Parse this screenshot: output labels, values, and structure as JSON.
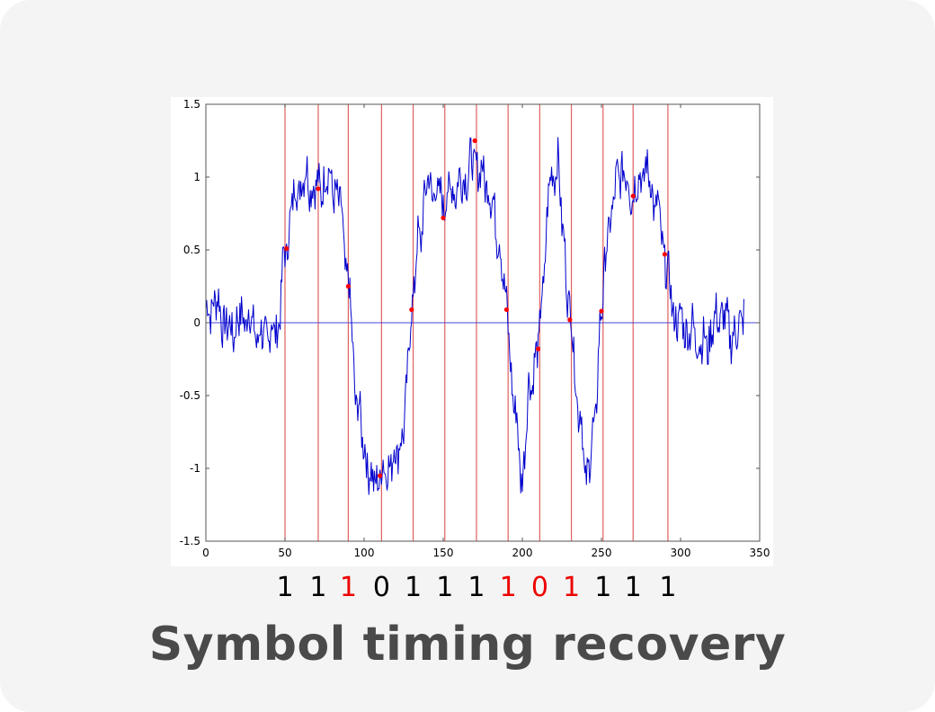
{
  "title": "Symbol timing recovery",
  "chart_data": {
    "type": "line",
    "xlim": [
      0,
      350
    ],
    "ylim": [
      -1.5,
      1.5
    ],
    "x_ticks": [
      "0",
      "50",
      "100",
      "150",
      "200",
      "250",
      "300",
      "350"
    ],
    "y_ticks": [
      "1.5",
      "1",
      "0.5",
      "0",
      "-0.5",
      "-1",
      "-1.5"
    ],
    "grid": false,
    "colors": {
      "signal": "#0000cc",
      "zero_line": "#4444dd",
      "sampling_lines": "#e06060",
      "sample_points": "#ff0000"
    },
    "zero_line_y": 0,
    "sampling_instants_x": [
      50,
      71,
      90,
      111,
      131,
      151,
      171,
      191,
      211,
      231,
      251,
      270,
      292
    ],
    "samples": [
      {
        "x": 51,
        "y": 0.51
      },
      {
        "x": 71,
        "y": 0.92
      },
      {
        "x": 90,
        "y": 0.25
      },
      {
        "x": 110,
        "y": -1.05
      },
      {
        "x": 130,
        "y": 0.09
      },
      {
        "x": 150,
        "y": 0.72
      },
      {
        "x": 170,
        "y": 1.25
      },
      {
        "x": 190,
        "y": 0.09
      },
      {
        "x": 210,
        "y": -0.18
      },
      {
        "x": 230,
        "y": 0.02
      },
      {
        "x": 250,
        "y": 0.08
      },
      {
        "x": 270,
        "y": 0.87
      },
      {
        "x": 290,
        "y": 0.47
      }
    ],
    "signal_anchors": [
      [
        0,
        0.05
      ],
      [
        5,
        0.15
      ],
      [
        15,
        -0.05
      ],
      [
        25,
        0.05
      ],
      [
        35,
        -0.1
      ],
      [
        45,
        -0.05
      ],
      [
        50,
        0.45
      ],
      [
        55,
        0.85
      ],
      [
        62,
        1.0
      ],
      [
        70,
        0.92
      ],
      [
        78,
        1.0
      ],
      [
        85,
        0.8
      ],
      [
        90,
        0.25
      ],
      [
        95,
        -0.5
      ],
      [
        100,
        -0.85
      ],
      [
        105,
        -1.1
      ],
      [
        110,
        -1.05
      ],
      [
        118,
        -0.95
      ],
      [
        125,
        -0.75
      ],
      [
        130,
        0.1
      ],
      [
        135,
        0.6
      ],
      [
        140,
        0.95
      ],
      [
        150,
        0.85
      ],
      [
        160,
        0.95
      ],
      [
        170,
        1.1
      ],
      [
        178,
        0.95
      ],
      [
        185,
        0.6
      ],
      [
        190,
        0.1
      ],
      [
        195,
        -0.6
      ],
      [
        200,
        -1.05
      ],
      [
        205,
        -0.4
      ],
      [
        210,
        -0.2
      ],
      [
        213,
        0.3
      ],
      [
        218,
        1.0
      ],
      [
        222,
        1.1
      ],
      [
        226,
        0.6
      ],
      [
        230,
        0.05
      ],
      [
        236,
        -0.6
      ],
      [
        240,
        -1.05
      ],
      [
        245,
        -0.8
      ],
      [
        250,
        0.1
      ],
      [
        255,
        0.7
      ],
      [
        262,
        1.05
      ],
      [
        270,
        0.9
      ],
      [
        278,
        1.05
      ],
      [
        285,
        0.8
      ],
      [
        290,
        0.45
      ],
      [
        296,
        0.05
      ],
      [
        305,
        -0.05
      ],
      [
        315,
        -0.15
      ],
      [
        325,
        0.05
      ],
      [
        335,
        -0.1
      ],
      [
        340,
        0.1
      ]
    ]
  },
  "bits": [
    {
      "label": "1",
      "color": "#000000"
    },
    {
      "label": "1",
      "color": "#000000"
    },
    {
      "label": "1",
      "color": "#ee0000"
    },
    {
      "label": "0",
      "color": "#000000"
    },
    {
      "label": "1",
      "color": "#000000"
    },
    {
      "label": "1",
      "color": "#000000"
    },
    {
      "label": "1",
      "color": "#000000"
    },
    {
      "label": "1",
      "color": "#ee0000"
    },
    {
      "label": "0",
      "color": "#ee0000"
    },
    {
      "label": "1",
      "color": "#ee0000"
    },
    {
      "label": "1",
      "color": "#000000"
    },
    {
      "label": "1",
      "color": "#000000"
    },
    {
      "label": "1",
      "color": "#000000"
    }
  ]
}
